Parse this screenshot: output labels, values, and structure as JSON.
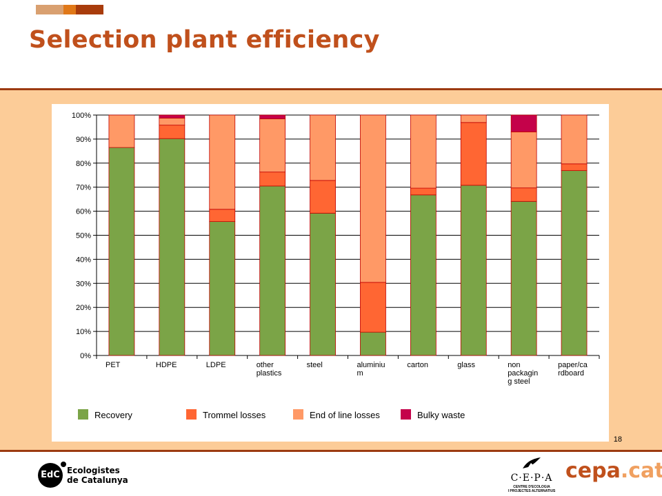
{
  "header": {
    "title": "Selection plant efficiency"
  },
  "page": {
    "number": "18"
  },
  "logos": {
    "edc": {
      "mark": "EdC",
      "line1": "Ecologistes",
      "line2": "de Catalunya"
    },
    "cepa": {
      "letters": "C·E·P·A",
      "sub1": "CENTRE D'ECOLOGIA",
      "sub2": "I PROJECTES ALTERNATIUS"
    },
    "cepacat": {
      "main": "cepa",
      "suffix": ".cat"
    }
  },
  "chart_data": {
    "type": "bar",
    "stacked": true,
    "title": "",
    "xlabel": "",
    "ylabel": "",
    "ylim": [
      0,
      100
    ],
    "yticks": [
      "0%",
      "10%",
      "20%",
      "30%",
      "40%",
      "50%",
      "60%",
      "70%",
      "80%",
      "90%",
      "100%"
    ],
    "grid": true,
    "legend_position": "bottom",
    "categories": [
      [
        "PET"
      ],
      [
        "HDPE"
      ],
      [
        "LDPE"
      ],
      [
        "other",
        "plastics"
      ],
      [
        "steel"
      ],
      [
        "aluminiu",
        "m"
      ],
      [
        "carton"
      ],
      [
        "glass"
      ],
      [
        "non",
        "packagin",
        "g steel"
      ],
      [
        "paper/ca",
        "rdboard"
      ]
    ],
    "series": [
      {
        "name": "Recovery",
        "color": "#7ba447",
        "values": [
          86.5,
          90.2,
          55.7,
          70.5,
          59.2,
          9.7,
          66.8,
          70.8,
          64.1,
          76.9
        ]
      },
      {
        "name": "Trommel losses",
        "color": "#ff6633",
        "values": [
          0,
          5.6,
          5.1,
          5.8,
          13.6,
          20.7,
          2.8,
          26.1,
          5.6,
          2.8
        ]
      },
      {
        "name": "End of line losses",
        "color": "#ff9966",
        "values": [
          13.5,
          2.9,
          39.2,
          22.1,
          27.2,
          69.6,
          30.4,
          3.1,
          23.3,
          20.3
        ]
      },
      {
        "name": "Bulky waste",
        "color": "#c4024a",
        "values": [
          0,
          1.3,
          0,
          1.6,
          0,
          0,
          0,
          0,
          7.0,
          0
        ]
      }
    ]
  }
}
